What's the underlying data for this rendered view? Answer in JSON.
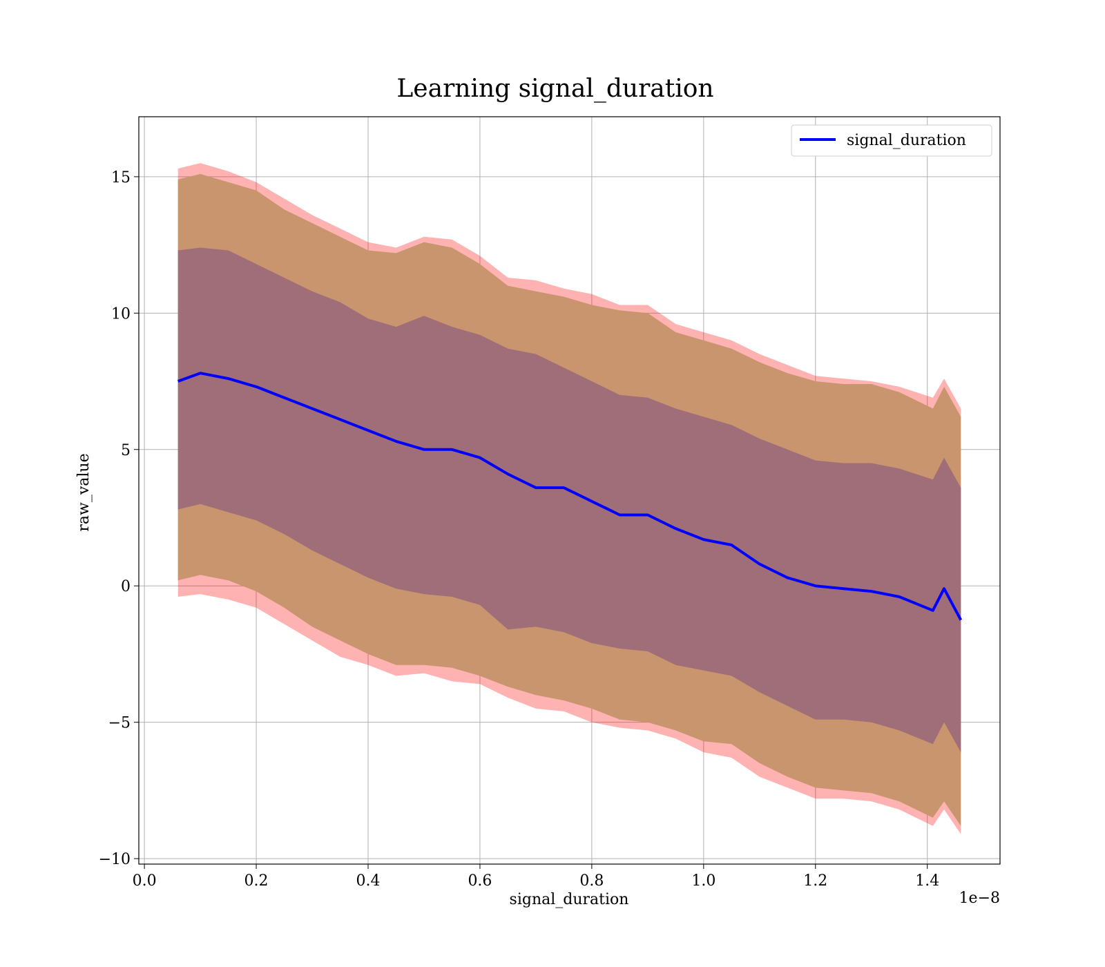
{
  "chart_data": {
    "type": "area",
    "title": "Learning signal_duration",
    "xlabel": "signal_duration",
    "ylabel": "raw_value",
    "x_offset_text": "1e−8",
    "xlim": [
      -0.01,
      1.53
    ],
    "ylim": [
      -10.2,
      17.2
    ],
    "x_ticks": [
      0.0,
      0.2,
      0.4,
      0.6,
      0.8,
      1.0,
      1.2,
      1.4
    ],
    "x_tick_labels": [
      "0.0",
      "0.2",
      "0.4",
      "0.6",
      "0.8",
      "1.0",
      "1.2",
      "1.4"
    ],
    "y_ticks": [
      -10,
      -5,
      0,
      5,
      10,
      15
    ],
    "y_tick_labels": [
      "−10",
      "−5",
      "0",
      "5",
      "10",
      "15"
    ],
    "grid": true,
    "legend": {
      "position": "top-right",
      "entries": [
        "signal_duration"
      ]
    },
    "colors": {
      "mean_line": "#0000ff",
      "outer_band": "#ff0000",
      "middle_band": "#c8956e",
      "inner_band": "#a06e78"
    },
    "x": [
      0.06,
      0.1,
      0.15,
      0.2,
      0.25,
      0.3,
      0.35,
      0.4,
      0.45,
      0.5,
      0.55,
      0.6,
      0.65,
      0.7,
      0.75,
      0.8,
      0.85,
      0.9,
      0.95,
      1.0,
      1.05,
      1.1,
      1.15,
      1.2,
      1.25,
      1.3,
      1.35,
      1.41,
      1.43,
      1.46
    ],
    "series": [
      {
        "name": "signal_duration",
        "values": [
          7.5,
          7.8,
          7.6,
          7.3,
          6.9,
          6.5,
          6.1,
          5.7,
          5.3,
          5.0,
          5.0,
          4.7,
          4.1,
          3.6,
          3.6,
          3.1,
          2.6,
          2.6,
          2.1,
          1.7,
          1.5,
          0.8,
          0.3,
          0.0,
          -0.1,
          -0.2,
          -0.4,
          -0.9,
          -0.1,
          -1.25
        ]
      }
    ],
    "bands": [
      {
        "upper": [
          15.3,
          15.5,
          15.2,
          14.8,
          14.2,
          13.6,
          13.1,
          12.6,
          12.4,
          12.8,
          12.7,
          12.1,
          11.3,
          11.2,
          10.9,
          10.7,
          10.3,
          10.3,
          9.6,
          9.3,
          9.0,
          8.5,
          8.1,
          7.7,
          7.6,
          7.5,
          7.3,
          6.9,
          7.6,
          6.5
        ],
        "lower": [
          -0.4,
          -0.3,
          -0.5,
          -0.8,
          -1.4,
          -2.0,
          -2.6,
          -2.9,
          -3.3,
          -3.2,
          -3.5,
          -3.6,
          -4.1,
          -4.5,
          -4.6,
          -5.0,
          -5.2,
          -5.3,
          -5.6,
          -6.1,
          -6.3,
          -7.0,
          -7.4,
          -7.8,
          -7.8,
          -7.9,
          -8.2,
          -8.8,
          -8.2,
          -9.1
        ]
      },
      {
        "upper": [
          14.9,
          15.1,
          14.8,
          14.5,
          13.8,
          13.3,
          12.8,
          12.3,
          12.2,
          12.6,
          12.4,
          11.8,
          11.0,
          10.8,
          10.6,
          10.3,
          10.1,
          10.0,
          9.3,
          9.0,
          8.7,
          8.2,
          7.8,
          7.5,
          7.4,
          7.4,
          7.1,
          6.5,
          7.3,
          6.2
        ],
        "lower": [
          0.2,
          0.4,
          0.2,
          -0.2,
          -0.8,
          -1.5,
          -2.0,
          -2.5,
          -2.9,
          -2.9,
          -3.0,
          -3.3,
          -3.7,
          -4.0,
          -4.2,
          -4.5,
          -4.9,
          -5.0,
          -5.3,
          -5.7,
          -5.8,
          -6.5,
          -7.0,
          -7.4,
          -7.5,
          -7.6,
          -7.9,
          -8.5,
          -7.9,
          -8.8
        ]
      },
      {
        "upper": [
          12.3,
          12.4,
          12.3,
          11.8,
          11.3,
          10.8,
          10.4,
          9.8,
          9.5,
          9.9,
          9.5,
          9.2,
          8.7,
          8.5,
          8.0,
          7.5,
          7.0,
          6.9,
          6.5,
          6.2,
          5.9,
          5.4,
          5.0,
          4.6,
          4.5,
          4.5,
          4.3,
          3.9,
          4.7,
          3.6
        ],
        "lower": [
          2.8,
          3.0,
          2.7,
          2.4,
          1.9,
          1.3,
          0.8,
          0.3,
          -0.1,
          -0.3,
          -0.4,
          -0.7,
          -1.6,
          -1.5,
          -1.7,
          -2.1,
          -2.3,
          -2.4,
          -2.9,
          -3.1,
          -3.3,
          -3.9,
          -4.4,
          -4.9,
          -4.9,
          -5.0,
          -5.3,
          -5.8,
          -5.0,
          -6.1
        ]
      }
    ]
  }
}
